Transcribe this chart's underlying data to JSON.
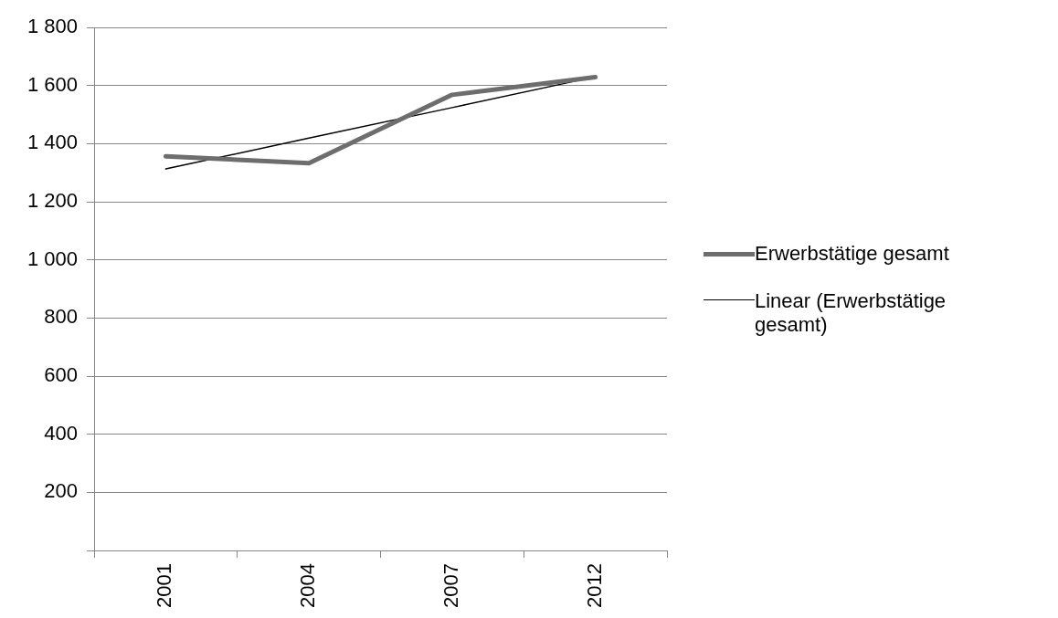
{
  "chart_data": {
    "type": "line",
    "categories": [
      "2001",
      "2004",
      "2007",
      "2012"
    ],
    "series": [
      {
        "name": "Erwerbstätige gesamt",
        "color": "#6d6d6d",
        "values": [
          1356,
          1333,
          1568,
          1629
        ]
      },
      {
        "name": "Linear (Erwerbstätige gesamt)",
        "color": "#000000",
        "values": [
          1313,
          1419,
          1524,
          1630
        ]
      }
    ],
    "ylim": [
      0,
      1800
    ],
    "yticks": [
      {
        "value": 0,
        "label": null
      },
      {
        "value": 200,
        "label": "200"
      },
      {
        "value": 400,
        "label": "400"
      },
      {
        "value": 600,
        "label": "600"
      },
      {
        "value": 800,
        "label": "800"
      },
      {
        "value": 1000,
        "label": "1 000"
      },
      {
        "value": 1200,
        "label": "1 200"
      },
      {
        "value": 1400,
        "label": "1 400"
      },
      {
        "value": 1600,
        "label": "1 600"
      },
      {
        "value": 1800,
        "label": "1 800"
      }
    ],
    "grid": "y",
    "legend": "right",
    "marker": "none"
  }
}
